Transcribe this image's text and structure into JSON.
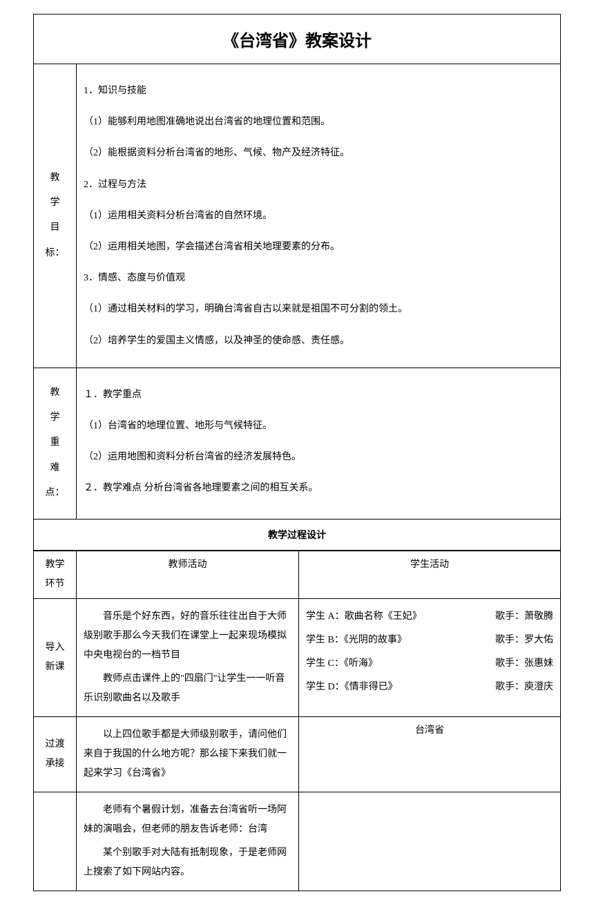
{
  "page_title": "《台湾省》教案设计",
  "objectives": {
    "label": "教学目标：",
    "s1_title": "1．知识与技能",
    "s1_item1": "（1）能够利用地图准确地说出台湾省的地理位置和范围。",
    "s1_item2": "（2）能根据资料分析台湾省的地形、气候、物产及经济特征。",
    "s2_title": "2．过程与方法",
    "s2_item1": "（1）运用相关资料分析台湾省的自然环境。",
    "s2_item2": "（2）运用相关地图，学会描述台湾省相关地理要素的分布。",
    "s3_title": "3．情感、态度与价值观",
    "s3_item1": "（1）通过相关材料的学习，明确台湾省自古以来就是祖国不可分割的领土。",
    "s3_item2": "（2）培养学生的爱国主义情感，以及神圣的使命感、责任感。"
  },
  "focus": {
    "label": "教学重难点：",
    "p1_title": "１．教学重点",
    "p1_item1": "（1）台湾省的地理位置、地形与气候特征。",
    "p1_item2": "（2）运用地图和资料分析台湾省的经济发展特色。",
    "p2_line": "２．教学难点  分析台湾省各地理要素之间的相互关系。"
  },
  "process_header": "教学过程设计",
  "process_columns": {
    "phase": "教学环节",
    "teacher": "教师活动",
    "student": "学生活动"
  },
  "rows": [
    {
      "phase": "导入新课",
      "teacher_paras": [
        "音乐是个好东西，好的音乐往往出自于大师级别歌手那么今天我们在课堂上一起来现场模拟中央电视台的一档节目",
        "教师点击课件上的\"四扇门\"让学生一一听音乐识别歌曲名以及歌手"
      ],
      "students": [
        {
          "left": "学生 A：歌曲名称《王妃》",
          "right": "歌手：萧敬腾"
        },
        {
          "left": "学生 B：《光阴的故事》",
          "right": "歌手：罗大佑"
        },
        {
          "left": "学生 C：《听海》",
          "right": "歌手：张惠妹"
        },
        {
          "left": "学生 D：《情非得已》",
          "right": "歌手：庾澄庆"
        }
      ]
    },
    {
      "phase": "过渡承接",
      "teacher_paras": [
        "以上四位歌手都是大师级别歌手，请问他们来自于我国的什么地方呢？那么接下来我们就一起来学习《台湾省》"
      ],
      "student_center": "台湾省"
    },
    {
      "phase": "",
      "teacher_paras": [
        "老师有个暑假计划，准备去台湾省听一场阿妹的演唱会，但老师的朋友告诉老师：台湾",
        "某个别歌手对大陆有抵制现象，于是老师网上搜索了如下网站内容。"
      ],
      "student_center": ""
    }
  ]
}
